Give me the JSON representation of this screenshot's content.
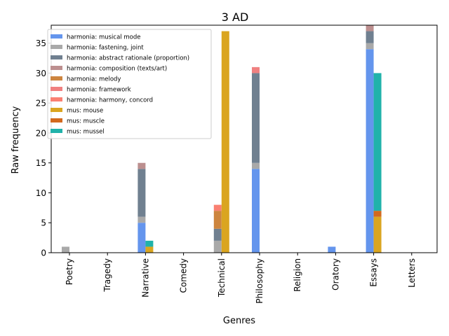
{
  "chart_data": {
    "type": "bar",
    "title": "3 AD",
    "xlabel": "Genres",
    "ylabel": "Raw frequency",
    "ylim": [
      0,
      38
    ],
    "yticks": [
      0,
      5,
      10,
      15,
      20,
      25,
      30,
      35
    ],
    "grid": false,
    "legend_position": "top-left",
    "categories": [
      "Poetry",
      "Tragedy",
      "Narrative",
      "Comedy",
      "Technical",
      "Philosophy",
      "Religion",
      "Oratory",
      "Essays",
      "Letters"
    ],
    "groups": [
      {
        "name": "harmonia",
        "position": "left"
      },
      {
        "name": "mus",
        "position": "right"
      }
    ],
    "series": [
      {
        "name": "harmonia: musical mode",
        "group": "harmonia",
        "color": "#6495ed",
        "values": [
          0,
          0,
          5,
          0,
          0,
          14,
          0,
          1,
          34,
          0
        ]
      },
      {
        "name": "harmonia: fastening, joint",
        "group": "harmonia",
        "color": "#a9a9a9",
        "values": [
          1,
          0,
          1,
          0,
          2,
          1,
          0,
          0,
          1,
          0
        ]
      },
      {
        "name": "harmonia: abstract rationale (proportion)",
        "group": "harmonia",
        "color": "#708090",
        "values": [
          0,
          0,
          8,
          0,
          2,
          15,
          0,
          0,
          2,
          0
        ]
      },
      {
        "name": "harmonia: composition (texts/art)",
        "group": "harmonia",
        "color": "#bc8f8f",
        "values": [
          0,
          0,
          1,
          0,
          0,
          0,
          0,
          0,
          1,
          0
        ]
      },
      {
        "name": "harmonia: melody",
        "group": "harmonia",
        "color": "#cd853f",
        "values": [
          0,
          0,
          0,
          0,
          3,
          0,
          0,
          0,
          0,
          0
        ]
      },
      {
        "name": "harmonia: framework",
        "group": "harmonia",
        "color": "#f08080",
        "values": [
          0,
          0,
          0,
          0,
          0,
          1,
          0,
          0,
          0,
          0
        ]
      },
      {
        "name": "harmonia: harmony, concord",
        "group": "harmonia",
        "color": "#fa8072",
        "values": [
          0,
          0,
          0,
          0,
          1,
          0,
          0,
          0,
          0,
          0
        ]
      },
      {
        "name": "mus: mouse",
        "group": "mus",
        "color": "#daa520",
        "values": [
          0,
          0,
          1,
          0,
          37,
          0,
          0,
          0,
          6,
          0
        ]
      },
      {
        "name": "mus: muscle",
        "group": "mus",
        "color": "#d2691e",
        "values": [
          0,
          0,
          0,
          0,
          0,
          0,
          0,
          0,
          1,
          0
        ]
      },
      {
        "name": "mus: mussel",
        "group": "mus",
        "color": "#20b2aa",
        "values": [
          0,
          0,
          1,
          0,
          0,
          0,
          0,
          0,
          23,
          0
        ]
      }
    ]
  }
}
